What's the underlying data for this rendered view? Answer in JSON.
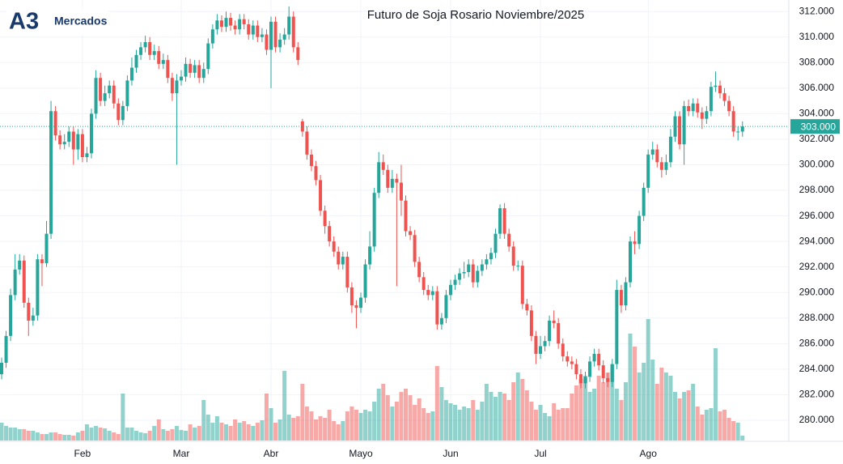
{
  "logo": {
    "mark": "A3",
    "name": "Mercados"
  },
  "chart_data": {
    "type": "candlestick",
    "title": "Futuro de Soja Rosario Noviembre/2025",
    "up_color": "#26a69a",
    "down_color": "#ef5350",
    "grid": true,
    "ylim": [
      278.35,
      312.9
    ],
    "yticks": [
      {
        "value": 280,
        "label": "280.000"
      },
      {
        "value": 282,
        "label": "282.000"
      },
      {
        "value": 284,
        "label": "284.000"
      },
      {
        "value": 286,
        "label": "286.000"
      },
      {
        "value": 288,
        "label": "288.000"
      },
      {
        "value": 290,
        "label": "290.000"
      },
      {
        "value": 292,
        "label": "292.000"
      },
      {
        "value": 294,
        "label": "294.000"
      },
      {
        "value": 296,
        "label": "296.000"
      },
      {
        "value": 298,
        "label": "298.000"
      },
      {
        "value": 300,
        "label": "300.000"
      },
      {
        "value": 302,
        "label": "302.000"
      },
      {
        "value": 304,
        "label": "304.000"
      },
      {
        "value": 306,
        "label": "306.000"
      },
      {
        "value": 308,
        "label": "308.000"
      },
      {
        "value": 310,
        "label": "310.000"
      },
      {
        "value": 312,
        "label": "312.000"
      }
    ],
    "last_price": {
      "value": 303,
      "label": "303.000"
    },
    "categories": [
      null,
      null,
      null,
      null,
      null,
      null,
      null,
      null,
      null,
      null,
      null,
      null,
      null,
      null,
      null,
      null,
      null,
      null,
      "Feb",
      null,
      null,
      null,
      null,
      null,
      null,
      null,
      null,
      null,
      null,
      null,
      null,
      null,
      null,
      null,
      null,
      null,
      null,
      null,
      null,
      null,
      "Mar",
      null,
      null,
      null,
      null,
      null,
      null,
      null,
      null,
      null,
      null,
      null,
      null,
      null,
      null,
      null,
      null,
      null,
      null,
      null,
      "Abr",
      null,
      null,
      null,
      null,
      null,
      null,
      null,
      null,
      null,
      null,
      null,
      null,
      null,
      null,
      null,
      null,
      null,
      null,
      null,
      "Mayo",
      null,
      null,
      null,
      null,
      null,
      null,
      null,
      null,
      null,
      null,
      null,
      null,
      null,
      null,
      null,
      null,
      null,
      null,
      null,
      "Jun",
      null,
      null,
      null,
      null,
      null,
      null,
      null,
      null,
      null,
      null,
      null,
      null,
      null,
      null,
      null,
      null,
      null,
      null,
      null,
      "Jul",
      null,
      null,
      null,
      null,
      null,
      null,
      null,
      null,
      null,
      null,
      null,
      null,
      null,
      null,
      null,
      null,
      null,
      null,
      null,
      null,
      null,
      null,
      null,
      "Ago",
      null,
      null,
      null,
      null,
      null,
      null,
      null,
      null,
      null,
      null,
      null,
      null,
      null,
      null,
      null,
      null,
      null,
      null,
      null,
      null,
      null
    ],
    "open": [
      283.6,
      284.5,
      286.6,
      289.8,
      291.8,
      292.5,
      289.2,
      287.8,
      288.2,
      292.6,
      292.3,
      294.6,
      304.2,
      302.3,
      301.6,
      301.8,
      302.6,
      301.2,
      302.4,
      300.6,
      300.9,
      304.0,
      306.8,
      305.0,
      305.6,
      306.2,
      304.8,
      303.5,
      304.6,
      306.6,
      307.6,
      308.6,
      309.2,
      309.6,
      308.6,
      308.9,
      307.9,
      308.2,
      306.8,
      305.6,
      306.6,
      306.9,
      307.9,
      307.2,
      307.8,
      306.8,
      307.5,
      309.5,
      310.6,
      311.3,
      310.8,
      311.5,
      310.9,
      310.6,
      311.4,
      311.0,
      310.2,
      310.9,
      310.0,
      310.2,
      309.0,
      311.2,
      309.2,
      309.8,
      310.2,
      311.6,
      309.2,
      303.4,
      302.6,
      300.8,
      299.9,
      298.8,
      296.4,
      295.2,
      294.0,
      293.2,
      292.2,
      292.8,
      290.4,
      289.0,
      288.8,
      289.6,
      292.2,
      293.6,
      297.8,
      300.2,
      299.6,
      298.2,
      298.9,
      298.6,
      297.2,
      294.8,
      294.5,
      292.4,
      291.2,
      290.2,
      289.8,
      290.1,
      287.5,
      288.0,
      289.8,
      290.6,
      291.0,
      291.5,
      291.6,
      292.2,
      290.8,
      291.7,
      292.2,
      292.6,
      293.1,
      294.6,
      296.6,
      294.6,
      293.6,
      292.1,
      292.1,
      289.1,
      288.6,
      286.6,
      285.2,
      285.8,
      286.2,
      287.8,
      287.6,
      286.0,
      285.0,
      284.6,
      284.4,
      283.6,
      282.9,
      283.4,
      284.6,
      285.2,
      284.3,
      283.3,
      283.0,
      284.4,
      290.2,
      289.0,
      290.8,
      294.0,
      293.8,
      296.0,
      298.2,
      300.8,
      301.2,
      300.2,
      299.6,
      300.2,
      302.2,
      303.8,
      301.6,
      304.6,
      304.2,
      304.8,
      304.1,
      303.6,
      304.2,
      306.1,
      306.2,
      305.6,
      305.0,
      304.2,
      302.6,
      302.6
    ],
    "high": [
      284.9,
      287.0,
      290.3,
      293.0,
      293.0,
      292.9,
      289.6,
      288.8,
      293.0,
      293.0,
      295.6,
      305.0,
      304.6,
      302.7,
      302.4,
      303.0,
      303.0,
      302.8,
      302.8,
      301.4,
      304.4,
      307.4,
      307.2,
      306.2,
      306.6,
      306.6,
      305.2,
      305.0,
      307.0,
      308.4,
      309.0,
      309.6,
      310.1,
      310.0,
      309.4,
      309.3,
      308.7,
      308.6,
      307.2,
      307.1,
      307.4,
      308.4,
      308.3,
      308.2,
      308.2,
      308.0,
      309.9,
      311.0,
      311.8,
      311.7,
      312.0,
      311.9,
      311.3,
      311.8,
      311.8,
      311.4,
      311.3,
      311.3,
      310.7,
      310.6,
      311.6,
      311.6,
      310.3,
      310.7,
      312.4,
      312.0,
      309.6,
      303.6,
      303.0,
      301.2,
      300.3,
      299.2,
      296.8,
      295.6,
      294.4,
      293.6,
      293.2,
      293.2,
      290.8,
      289.4,
      290.0,
      292.6,
      294.8,
      298.2,
      301.0,
      300.8,
      300.0,
      299.6,
      299.3,
      300.0,
      297.6,
      295.2,
      294.9,
      292.8,
      291.6,
      290.6,
      290.5,
      290.5,
      288.4,
      290.2,
      291.0,
      291.4,
      291.9,
      292.4,
      292.6,
      292.6,
      292.1,
      292.6,
      293.0,
      293.5,
      295.0,
      296.9,
      297.0,
      295.0,
      294.0,
      292.5,
      292.5,
      289.5,
      289.0,
      287.0,
      286.6,
      286.6,
      288.2,
      288.6,
      288.0,
      286.4,
      285.4,
      285.0,
      284.8,
      284.0,
      283.8,
      285.0,
      285.6,
      285.6,
      284.7,
      283.7,
      284.8,
      291.0,
      290.6,
      291.2,
      294.4,
      294.8,
      296.4,
      298.6,
      301.2,
      301.8,
      301.6,
      300.6,
      300.8,
      302.8,
      304.2,
      304.2,
      305.0,
      305.1,
      305.2,
      305.2,
      304.5,
      304.6,
      306.5,
      307.3,
      306.6,
      306.0,
      305.4,
      304.6,
      303.0,
      303.4
    ],
    "low": [
      283.2,
      284.1,
      286.2,
      289.4,
      291.4,
      288.8,
      286.6,
      287.4,
      287.8,
      290.5,
      292.0,
      294.2,
      301.9,
      301.2,
      301.2,
      301.4,
      300.0,
      300.4,
      300.2,
      300.2,
      300.5,
      303.6,
      304.6,
      304.6,
      305.2,
      304.4,
      303.1,
      303.1,
      304.2,
      306.2,
      307.2,
      308.2,
      308.8,
      308.2,
      308.2,
      307.5,
      307.5,
      306.4,
      305.0,
      300.0,
      306.2,
      306.5,
      306.8,
      306.8,
      306.4,
      306.4,
      307.1,
      309.1,
      310.2,
      310.4,
      310.4,
      310.5,
      310.2,
      310.2,
      310.6,
      309.8,
      309.8,
      309.6,
      309.6,
      308.6,
      306.0,
      308.8,
      308.8,
      309.4,
      309.8,
      308.8,
      307.8,
      302.2,
      300.4,
      299.5,
      298.4,
      296.0,
      294.6,
      293.6,
      292.8,
      291.8,
      291.8,
      290.0,
      288.4,
      287.2,
      288.4,
      289.2,
      291.8,
      293.2,
      297.4,
      299.2,
      297.8,
      297.8,
      290.5,
      296.0,
      294.4,
      294.1,
      292.0,
      290.8,
      289.8,
      289.4,
      289.4,
      287.1,
      287.1,
      287.6,
      289.4,
      290.2,
      290.6,
      291.1,
      291.2,
      290.4,
      290.4,
      291.3,
      291.8,
      292.2,
      292.7,
      294.2,
      294.2,
      293.2,
      291.7,
      291.7,
      288.7,
      288.2,
      286.2,
      284.4,
      284.8,
      285.4,
      285.8,
      287.2,
      285.6,
      284.6,
      284.2,
      284.0,
      283.2,
      282.5,
      282.5,
      283.0,
      284.2,
      283.9,
      282.9,
      282.6,
      282.6,
      284.0,
      288.4,
      288.6,
      290.4,
      293.0,
      293.4,
      295.6,
      297.8,
      300.4,
      299.8,
      299.0,
      299.2,
      299.8,
      301.8,
      301.2,
      300.0,
      303.8,
      303.8,
      303.7,
      302.8,
      303.2,
      303.8,
      305.7,
      305.2,
      304.6,
      303.8,
      302.2,
      301.9,
      302.2
    ],
    "close": [
      284.5,
      286.6,
      289.8,
      291.8,
      292.5,
      289.2,
      287.8,
      288.2,
      292.6,
      292.3,
      294.6,
      304.2,
      302.3,
      301.6,
      301.8,
      302.6,
      301.2,
      302.4,
      300.6,
      300.9,
      304.0,
      306.8,
      305.0,
      305.6,
      306.2,
      304.8,
      303.5,
      304.6,
      306.6,
      307.6,
      308.6,
      309.2,
      309.6,
      308.6,
      308.9,
      307.9,
      308.2,
      306.8,
      305.6,
      306.6,
      306.9,
      307.9,
      307.2,
      307.8,
      306.8,
      307.5,
      309.5,
      310.6,
      311.3,
      310.8,
      311.5,
      310.9,
      310.6,
      311.4,
      311.0,
      310.2,
      310.9,
      310.0,
      310.2,
      309.0,
      311.2,
      309.2,
      309.8,
      310.2,
      311.6,
      309.2,
      308.2,
      302.6,
      300.8,
      299.9,
      298.8,
      296.4,
      295.2,
      294.0,
      293.2,
      292.2,
      292.8,
      290.4,
      289.0,
      288.8,
      289.6,
      292.2,
      293.6,
      297.8,
      300.2,
      299.6,
      298.2,
      298.9,
      298.6,
      297.2,
      294.8,
      294.5,
      292.4,
      291.2,
      290.2,
      289.8,
      290.1,
      287.5,
      288.0,
      289.8,
      290.6,
      291.0,
      291.5,
      291.6,
      292.2,
      290.8,
      291.7,
      292.2,
      292.6,
      293.1,
      294.6,
      296.6,
      294.6,
      293.6,
      292.1,
      292.1,
      289.1,
      288.6,
      286.6,
      285.2,
      285.8,
      286.2,
      287.8,
      287.6,
      286.0,
      285.0,
      284.6,
      284.4,
      283.6,
      282.9,
      283.4,
      284.6,
      285.2,
      284.3,
      283.3,
      283.0,
      284.4,
      290.2,
      289.0,
      290.8,
      294.0,
      293.8,
      296.0,
      298.2,
      300.8,
      301.2,
      300.2,
      299.6,
      300.2,
      302.2,
      303.8,
      301.6,
      304.6,
      304.2,
      304.8,
      304.1,
      303.6,
      304.2,
      306.1,
      306.2,
      305.6,
      305.0,
      304.2,
      302.6,
      302.6,
      303.0
    ],
    "volume": [
      22,
      18,
      16,
      16,
      14,
      14,
      12,
      12,
      10,
      8,
      8,
      10,
      10,
      8,
      7,
      7,
      6,
      10,
      12,
      20,
      16,
      18,
      16,
      15,
      12,
      10,
      8,
      58,
      16,
      16,
      12,
      10,
      9,
      12,
      18,
      26,
      14,
      12,
      14,
      18,
      13,
      12,
      20,
      16,
      18,
      50,
      32,
      22,
      30,
      22,
      20,
      18,
      26,
      22,
      24,
      20,
      18,
      22,
      25,
      58,
      40,
      22,
      26,
      86,
      32,
      28,
      30,
      70,
      42,
      36,
      26,
      30,
      28,
      38,
      24,
      20,
      24,
      36,
      42,
      38,
      34,
      38,
      36,
      48,
      64,
      70,
      56,
      42,
      48,
      60,
      64,
      56,
      44,
      52,
      40,
      34,
      36,
      92,
      66,
      50,
      46,
      44,
      38,
      42,
      40,
      50,
      38,
      48,
      70,
      60,
      54,
      60,
      58,
      50,
      72,
      84,
      76,
      62,
      48,
      38,
      44,
      34,
      30,
      46,
      38,
      40,
      40,
      58,
      68,
      76,
      80,
      60,
      64,
      80,
      72,
      84,
      94,
      64,
      50,
      72,
      132,
      116,
      84,
      96,
      150,
      100,
      70,
      90,
      84,
      80,
      60,
      52,
      60,
      62,
      70,
      42,
      32,
      38,
      40,
      114,
      36,
      38,
      28,
      24,
      22,
      6
    ]
  }
}
